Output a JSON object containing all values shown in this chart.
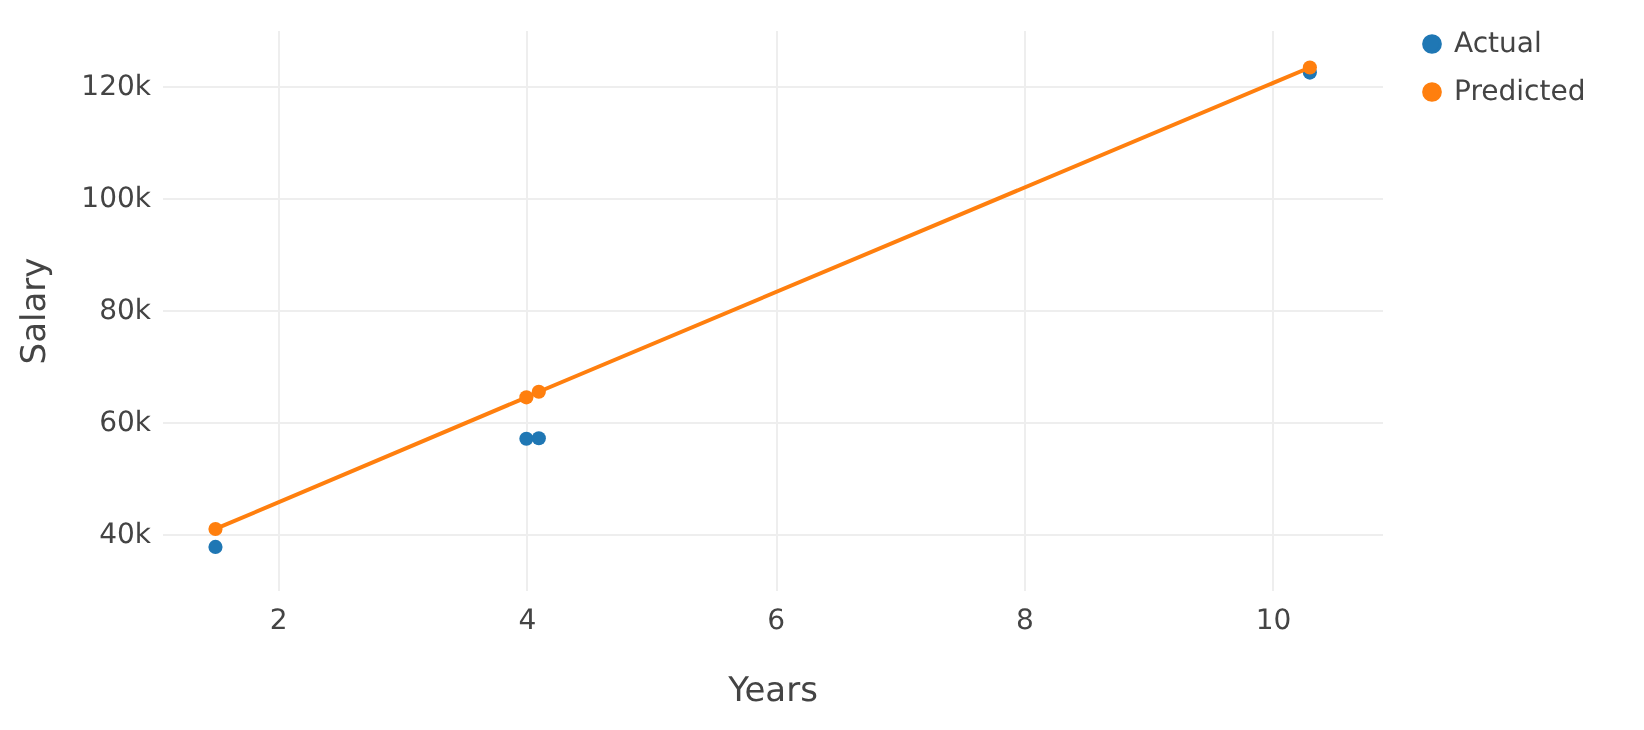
{
  "chart_data": {
    "type": "scatter",
    "xlabel": "Years",
    "ylabel": "Salary",
    "xlim": [
      1.07,
      10.88
    ],
    "ylim": [
      30000,
      130000
    ],
    "xticks": [
      2,
      4,
      6,
      8,
      10
    ],
    "yticks": [
      {
        "value": 40000,
        "label": "40k"
      },
      {
        "value": 60000,
        "label": "60k"
      },
      {
        "value": 80000,
        "label": "80k"
      },
      {
        "value": 100000,
        "label": "100k"
      },
      {
        "value": 120000,
        "label": "120k"
      }
    ],
    "grid": true,
    "legend": "top right",
    "marker": "circle",
    "series": [
      {
        "name": "Actual",
        "color": "#1f77b4",
        "x": [
          1.5,
          4.0,
          4.1,
          10.3
        ],
        "values": [
          37700,
          57000,
          57100,
          122400
        ]
      },
      {
        "name": "Predicted",
        "type": "line",
        "color": "#ff7f0e",
        "line_style": "solid",
        "x": [
          1.5,
          4.0,
          4.1,
          10.3
        ],
        "values": [
          40900,
          64400,
          65400,
          123300
        ]
      }
    ]
  }
}
